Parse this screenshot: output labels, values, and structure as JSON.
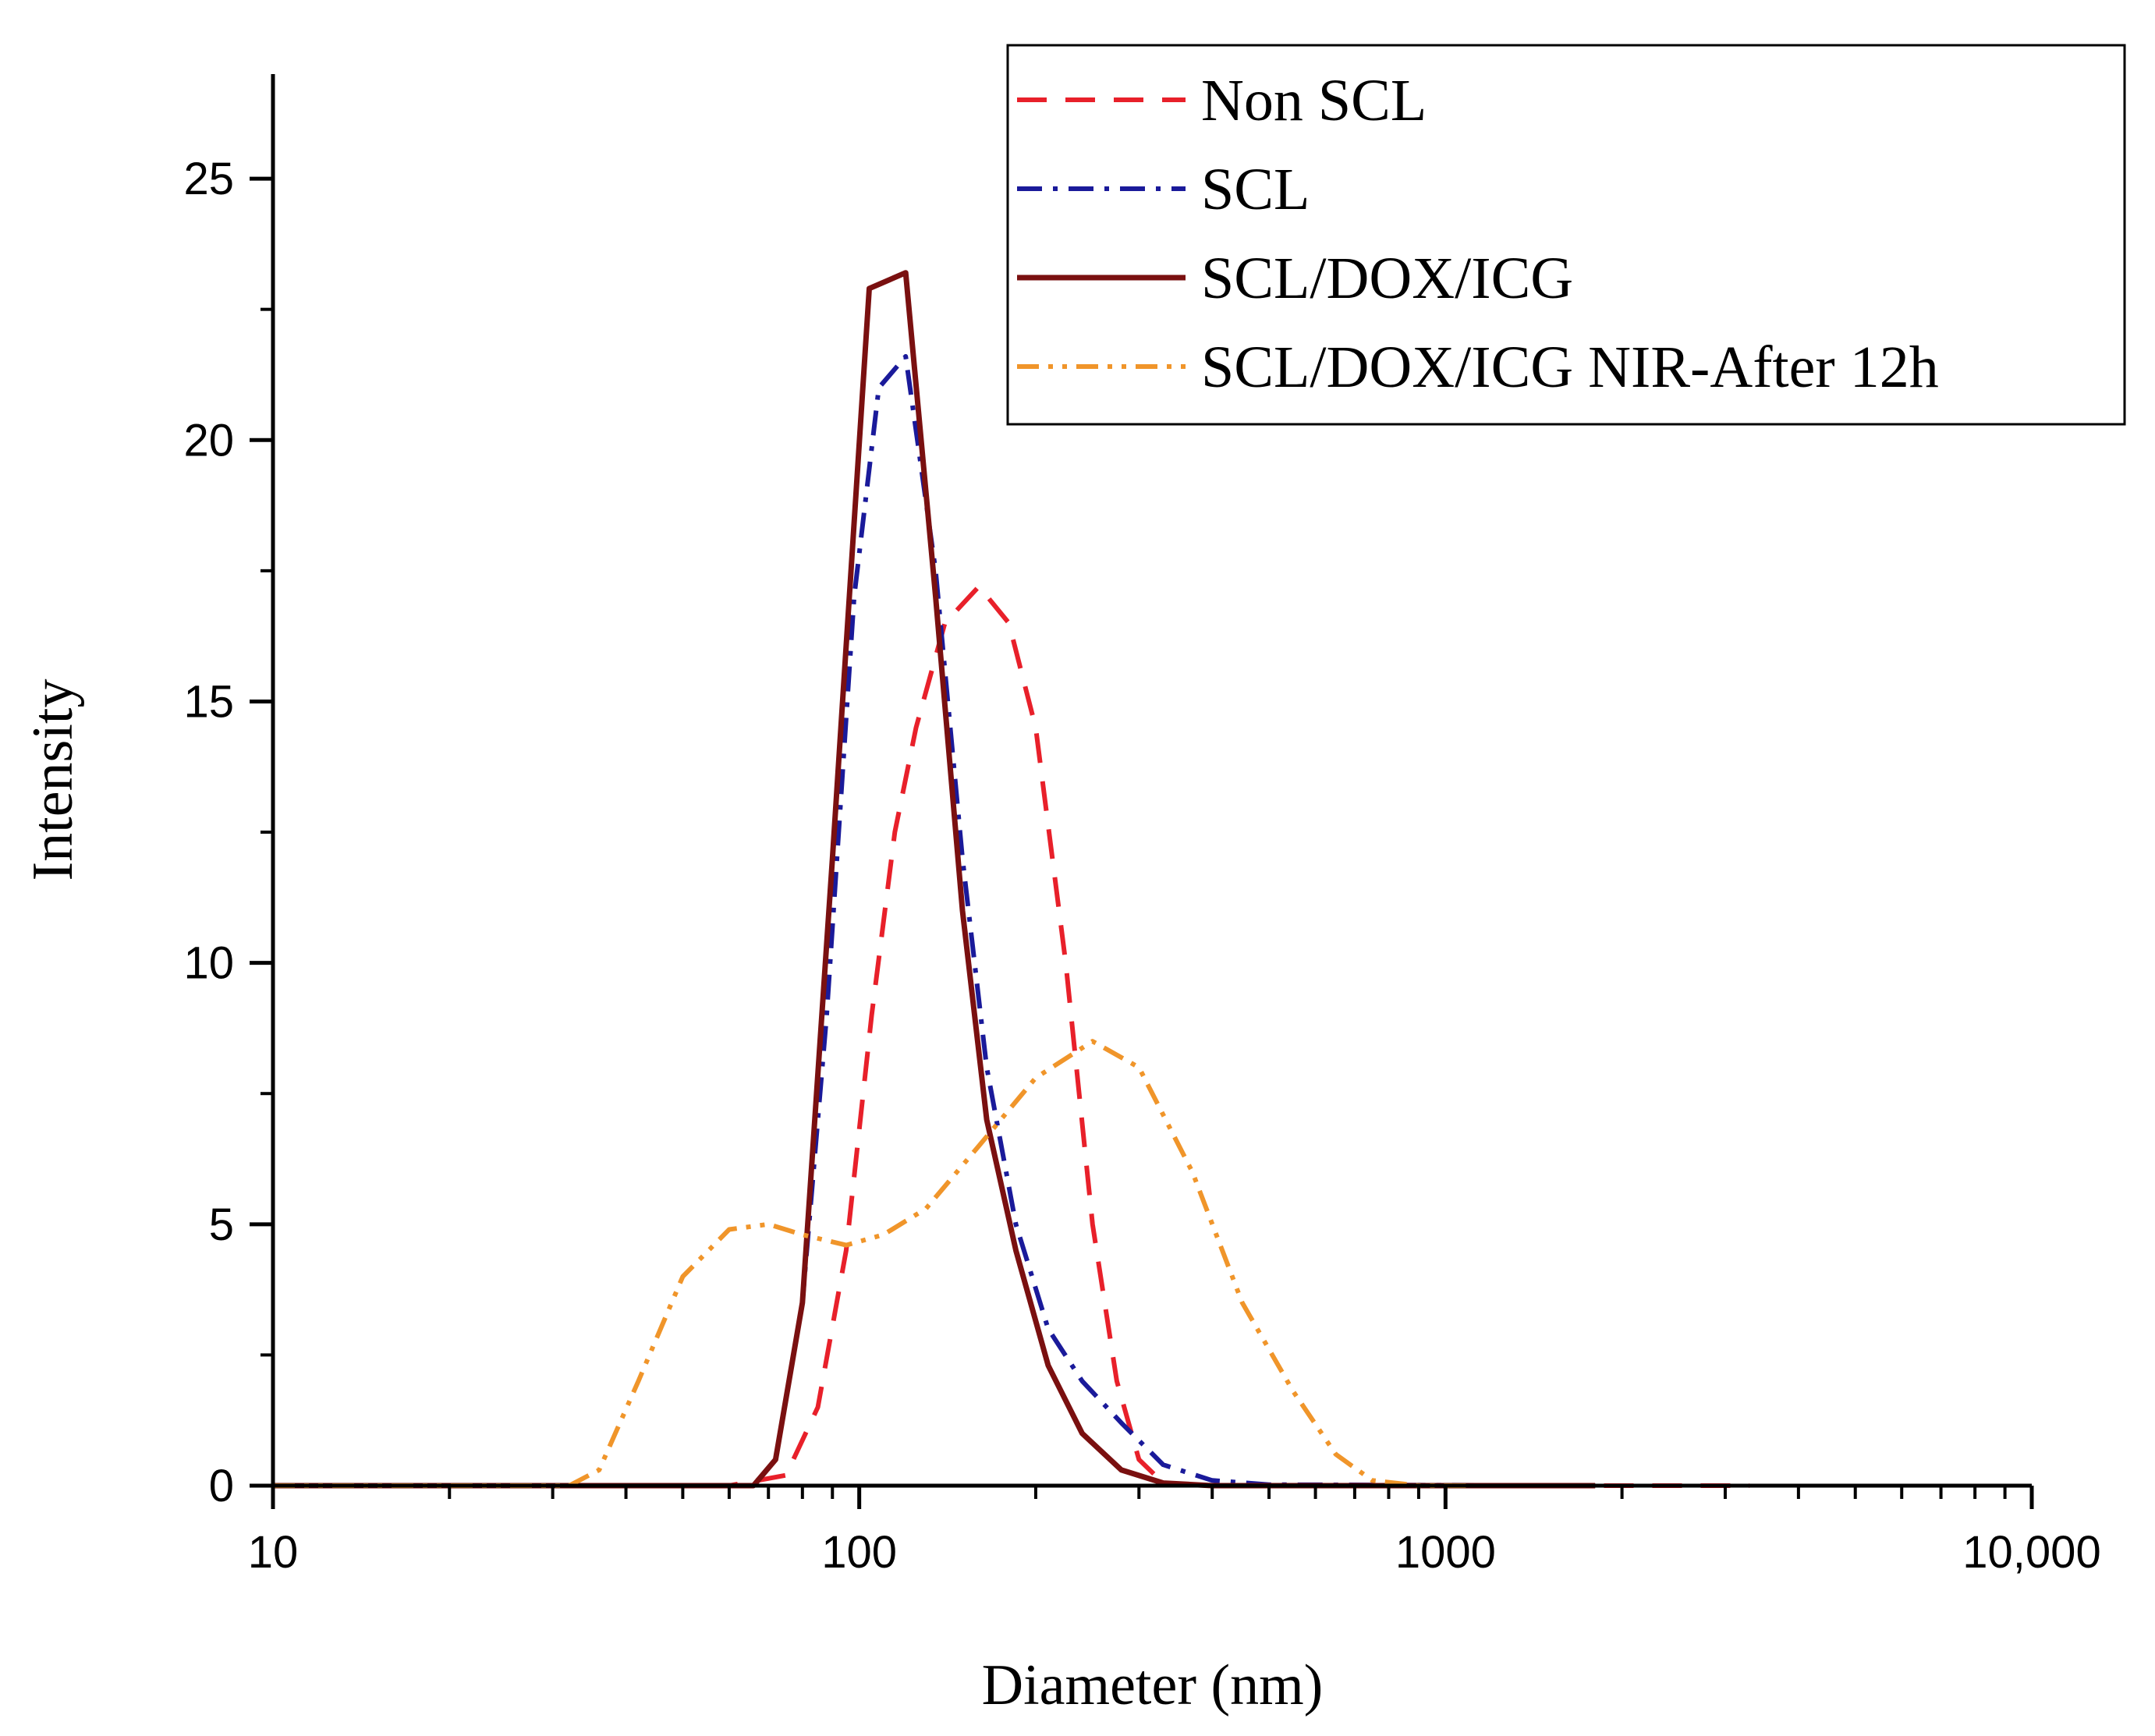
{
  "chart_data": {
    "type": "line",
    "title": "",
    "xlabel": "Diameter (nm)",
    "ylabel": "Intensity",
    "xscale": "log",
    "xlim": [
      10,
      10000
    ],
    "ylim": [
      0,
      27
    ],
    "grid": false,
    "legend_position": "top-right",
    "x_ticks": [
      {
        "value": 10,
        "label": "10"
      },
      {
        "value": 100,
        "label": "100"
      },
      {
        "value": 1000,
        "label": "1000"
      },
      {
        "value": 10000,
        "label": "10,000"
      }
    ],
    "y_ticks": [
      {
        "value": 0,
        "label": "0"
      },
      {
        "value": 5,
        "label": "5"
      },
      {
        "value": 10,
        "label": "10"
      },
      {
        "value": 15,
        "label": "15"
      },
      {
        "value": 20,
        "label": "20"
      },
      {
        "value": 25,
        "label": "25"
      }
    ],
    "series": [
      {
        "name": "Non SCL",
        "color": "#e8202a",
        "style": "dashed",
        "points": [
          [
            10,
            0
          ],
          [
            60,
            0
          ],
          [
            75,
            0.2
          ],
          [
            85,
            1.5
          ],
          [
            95,
            4.5
          ],
          [
            105,
            9
          ],
          [
            115,
            12.5
          ],
          [
            125,
            14.5
          ],
          [
            140,
            16.5
          ],
          [
            160,
            17.2
          ],
          [
            180,
            16.5
          ],
          [
            200,
            14.5
          ],
          [
            225,
            10
          ],
          [
            250,
            5
          ],
          [
            275,
            2
          ],
          [
            300,
            0.5
          ],
          [
            330,
            0.05
          ],
          [
            400,
            0
          ],
          [
            3300,
            0
          ]
        ]
      },
      {
        "name": "SCL",
        "color": "#1a1a9a",
        "style": "dashdot",
        "points": [
          [
            10,
            0
          ],
          [
            66,
            0
          ],
          [
            72,
            0.5
          ],
          [
            80,
            3.5
          ],
          [
            88,
            9
          ],
          [
            98,
            17
          ],
          [
            108,
            21
          ],
          [
            120,
            21.6
          ],
          [
            135,
            17.5
          ],
          [
            150,
            12
          ],
          [
            165,
            8
          ],
          [
            185,
            5
          ],
          [
            210,
            3
          ],
          [
            240,
            2
          ],
          [
            280,
            1.2
          ],
          [
            330,
            0.4
          ],
          [
            400,
            0.1
          ],
          [
            500,
            0.02
          ],
          [
            1800,
            0
          ]
        ]
      },
      {
        "name": "SCL/DOX/ICG",
        "color": "#7a1010",
        "style": "solid",
        "points": [
          [
            10,
            0
          ],
          [
            66,
            0
          ],
          [
            72,
            0.5
          ],
          [
            80,
            3.5
          ],
          [
            90,
            12
          ],
          [
            104,
            22.9
          ],
          [
            120,
            23.2
          ],
          [
            135,
            17
          ],
          [
            150,
            11
          ],
          [
            165,
            7
          ],
          [
            185,
            4.5
          ],
          [
            210,
            2.3
          ],
          [
            240,
            1
          ],
          [
            280,
            0.3
          ],
          [
            330,
            0.05
          ],
          [
            400,
            0
          ],
          [
            1800,
            0
          ]
        ]
      },
      {
        "name": "SCL/DOX/ICG NIR-After 12h",
        "color": "#f0952a",
        "style": "dashdotdot",
        "points": [
          [
            10,
            0
          ],
          [
            32,
            0
          ],
          [
            36,
            0.3
          ],
          [
            42,
            2
          ],
          [
            50,
            4
          ],
          [
            60,
            4.9
          ],
          [
            70,
            5
          ],
          [
            80,
            4.8
          ],
          [
            95,
            4.6
          ],
          [
            110,
            4.8
          ],
          [
            130,
            5.3
          ],
          [
            160,
            6.5
          ],
          [
            200,
            7.8
          ],
          [
            250,
            8.5
          ],
          [
            300,
            8
          ],
          [
            370,
            6
          ],
          [
            450,
            3.5
          ],
          [
            550,
            1.8
          ],
          [
            650,
            0.6
          ],
          [
            750,
            0.1
          ],
          [
            900,
            0
          ],
          [
            1100,
            0
          ]
        ]
      }
    ]
  }
}
